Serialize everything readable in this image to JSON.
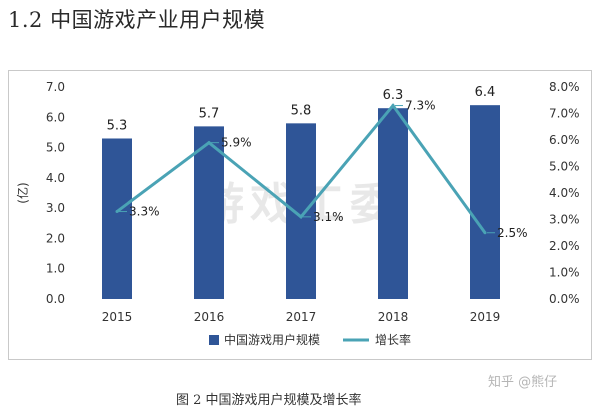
{
  "page": {
    "heading": "1.2  中国游戏产业用户规模",
    "caption": "图 2  中国游戏用户规模及增长率",
    "brand": "知乎 @熊仔",
    "watermark": "游戏工委"
  },
  "colors": {
    "bar": "#2F5597",
    "line": "#4AA3B5",
    "axis_text": "#333333",
    "frame": "#C9C9C9"
  },
  "chart_data": {
    "type": "bar",
    "categories": [
      "2015",
      "2016",
      "2017",
      "2018",
      "2019"
    ],
    "series": [
      {
        "name": "中国游戏用户规模",
        "type": "bar",
        "axis": "left",
        "values": [
          5.3,
          5.7,
          5.8,
          6.3,
          6.4
        ],
        "labels": [
          "5.3",
          "5.7",
          "5.8",
          "6.3",
          "6.4"
        ]
      },
      {
        "name": "增长率",
        "type": "line",
        "axis": "right",
        "values": [
          3.3,
          5.9,
          3.1,
          7.3,
          2.5
        ],
        "labels": [
          "3.3%",
          "5.9%",
          "3.1%",
          "7.3%",
          "2.5%"
        ]
      }
    ],
    "ylabel": "(亿)",
    "ylim": [
      0,
      7
    ],
    "yticks": [
      "0.0",
      "1.0",
      "2.0",
      "3.0",
      "4.0",
      "5.0",
      "6.0",
      "7.0"
    ],
    "y2lim": [
      0,
      8
    ],
    "y2ticks": [
      "0.0%",
      "1.0%",
      "2.0%",
      "3.0%",
      "4.0%",
      "5.0%",
      "6.0%",
      "7.0%",
      "8.0%"
    ],
    "legend_position": "bottom",
    "grid": false
  }
}
